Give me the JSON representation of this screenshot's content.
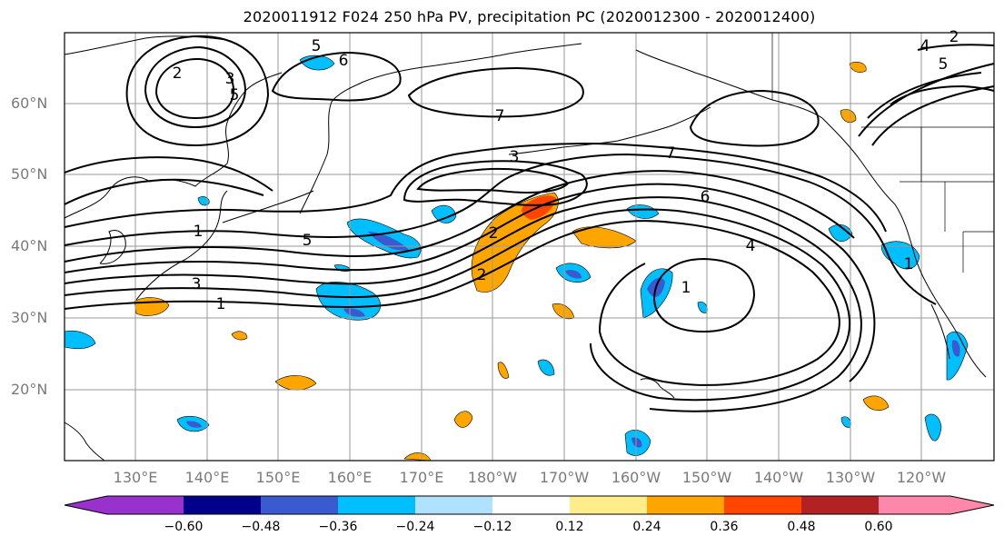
{
  "title": "2020011912 F024 250 hPa PV, precipitation PC (2020012300 - 2020012400)",
  "lat_labels": [
    "60°N",
    "50°N",
    "40°N",
    "30°N",
    "20°N"
  ],
  "lon_labels": [
    "130°E",
    "140°E",
    "150°E",
    "160°E",
    "170°E",
    "180°W",
    "170°W",
    "160°W",
    "150°W",
    "140°W",
    "130°W",
    "120°W"
  ],
  "contour_labels": [
    "5",
    "6",
    "2",
    "3",
    "5",
    "7",
    "7",
    "3",
    "6",
    "1",
    "5",
    "2",
    "2",
    "1",
    "3",
    "4",
    "1",
    "5",
    "4",
    "1",
    "2"
  ],
  "colorbar": {
    "ticks": [
      "−0.60",
      "−0.48",
      "−0.36",
      "−0.24",
      "−0.12",
      "0.12",
      "0.24",
      "0.36",
      "0.48",
      "0.60"
    ],
    "colors": [
      "#9932cc",
      "#00008b",
      "#3a5bd0",
      "#00bfff",
      "#b0e2ff",
      "#ffffff",
      "#ffec8b",
      "#ffa500",
      "#ff4500",
      "#b22222",
      "#ff88aa"
    ]
  },
  "colors": {
    "contour": "#000000",
    "grid": "#9a9a9a",
    "coast": "#000000"
  }
}
